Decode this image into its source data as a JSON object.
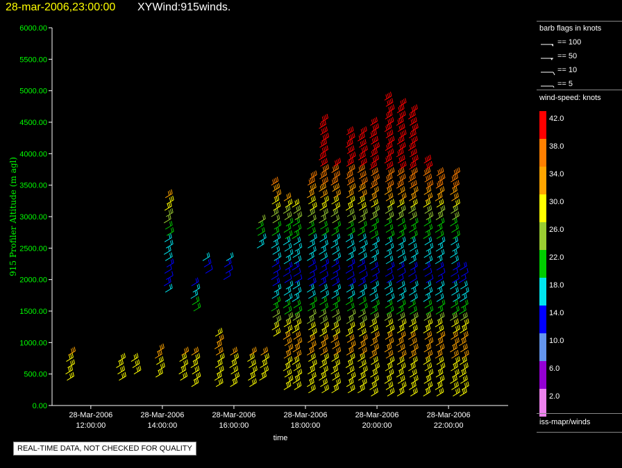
{
  "header": {
    "date_label": "28-mar-2006,23:00:00",
    "title": "XYWind:915winds."
  },
  "legend": {
    "barb_title": "barb flags in knots",
    "barb_entries": [
      "== 100",
      "== 50",
      "== 10",
      "== 5"
    ],
    "speed_title": "wind-speed: knots",
    "speed_levels": [
      {
        "value": "42.0",
        "color": "#ff0000"
      },
      {
        "value": "38.0",
        "color": "#ff7f00"
      },
      {
        "value": "34.0",
        "color": "#ffa500"
      },
      {
        "value": "30.0",
        "color": "#ffff00"
      },
      {
        "value": "26.0",
        "color": "#9acd32"
      },
      {
        "value": "22.0",
        "color": "#00cc00"
      },
      {
        "value": "18.0",
        "color": "#00e5ee"
      },
      {
        "value": "14.0",
        "color": "#0000ff"
      },
      {
        "value": "10.0",
        "color": "#6495ed"
      },
      {
        "value": "6.0",
        "color": "#9400d3"
      },
      {
        "value": "2.0",
        "color": "#ee82ee"
      }
    ],
    "source_label": "iss-mapr/winds"
  },
  "footer": {
    "note": "REAL-TIME DATA, NOT CHECKED FOR QUALITY"
  },
  "chart_data": {
    "type": "scatter",
    "xlabel": "time",
    "ylabel": "915 Profiler Altitude (m agl)",
    "ylim": [
      0,
      6000
    ],
    "xlim": [
      "28-Mar-2006 10:55",
      "28-Mar-2006 23:40"
    ],
    "y_tick_labels": [
      "0.00",
      "500.00",
      "1000.00",
      "1500.00",
      "2000.00",
      "2500.00",
      "3000.00",
      "3500.00",
      "4000.00",
      "4500.00",
      "5000.00",
      "5500.00",
      "6000.00"
    ],
    "x_tick_labels": [
      {
        "date": "28-Mar-2006",
        "time": "12:00:00"
      },
      {
        "date": "28-Mar-2006",
        "time": "14:00:00"
      },
      {
        "date": "28-Mar-2006",
        "time": "16:00:00"
      },
      {
        "date": "28-Mar-2006",
        "time": "18:00:00"
      },
      {
        "date": "28-Mar-2006",
        "time": "20:00:00"
      },
      {
        "date": "28-Mar-2006",
        "time": "22:00:00"
      }
    ],
    "profiles": [
      {
        "time": "11:20",
        "bottom": 400,
        "top": 800
      },
      {
        "time": "12:45",
        "bottom": 400,
        "top": 700
      },
      {
        "time": "13:10",
        "bottom": 500,
        "top": 700
      },
      {
        "time": "13:50",
        "bottom": 450,
        "top": 900
      },
      {
        "time": "14:05",
        "bottom": 1800,
        "top": 3300
      },
      {
        "time": "14:30",
        "bottom": 400,
        "top": 800
      },
      {
        "time": "14:50",
        "bottom": 300,
        "top": 800
      },
      {
        "time": "14:50",
        "bottom": 1500,
        "top": 1900
      },
      {
        "time": "15:10",
        "bottom": 2100,
        "top": 2300
      },
      {
        "time": "15:30",
        "bottom": 300,
        "top": 1100
      },
      {
        "time": "15:45",
        "bottom": 2000,
        "top": 2300
      },
      {
        "time": "15:55",
        "bottom": 300,
        "top": 800
      },
      {
        "time": "16:25",
        "bottom": 300,
        "top": 800
      },
      {
        "time": "16:40",
        "bottom": 2500,
        "top": 2900
      },
      {
        "time": "16:45",
        "bottom": 400,
        "top": 800
      },
      {
        "time": "17:05",
        "bottom": 1100,
        "top": 3500
      },
      {
        "time": "17:25",
        "bottom": 250,
        "top": 3300
      },
      {
        "time": "17:40",
        "bottom": 250,
        "top": 3200
      },
      {
        "time": "18:05",
        "bottom": 200,
        "top": 3600
      },
      {
        "time": "18:25",
        "bottom": 200,
        "top": 4500
      },
      {
        "time": "18:45",
        "bottom": 200,
        "top": 3800
      },
      {
        "time": "19:10",
        "bottom": 200,
        "top": 4300
      },
      {
        "time": "19:30",
        "bottom": 200,
        "top": 4300
      },
      {
        "time": "19:50",
        "bottom": 150,
        "top": 4500
      },
      {
        "time": "20:15",
        "bottom": 150,
        "top": 4900
      },
      {
        "time": "20:35",
        "bottom": 150,
        "top": 4800
      },
      {
        "time": "20:55",
        "bottom": 150,
        "top": 4700
      },
      {
        "time": "21:20",
        "bottom": 150,
        "top": 3900
      },
      {
        "time": "21:40",
        "bottom": 150,
        "top": 3700
      },
      {
        "time": "22:05",
        "bottom": 150,
        "top": 3700
      },
      {
        "time": "22:20",
        "bottom": 150,
        "top": 2200
      }
    ],
    "speed_by_height": [
      {
        "altitude": 500,
        "knots": 30
      },
      {
        "altitude": 1000,
        "knots": 34
      },
      {
        "altitude": 1500,
        "knots": 22
      },
      {
        "altitude": 2000,
        "knots": 14
      },
      {
        "altitude": 2500,
        "knots": 18
      },
      {
        "altitude": 3000,
        "knots": 26
      },
      {
        "altitude": 3500,
        "knots": 38
      },
      {
        "altitude": 4000,
        "knots": 42
      }
    ]
  }
}
